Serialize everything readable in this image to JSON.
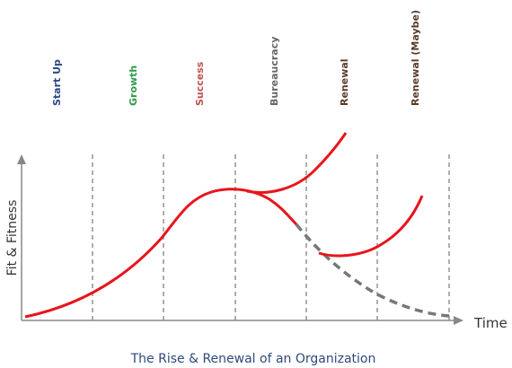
{
  "stages": [
    "Start Up",
    "Growth",
    "Success",
    "Bureaucracy",
    "Renewal",
    "Renewal (Maybe)"
  ],
  "y_axis_label": "Fit & Fitness",
  "x_axis_label": "Time",
  "caption": "The Rise & Renewal of an Organization"
}
